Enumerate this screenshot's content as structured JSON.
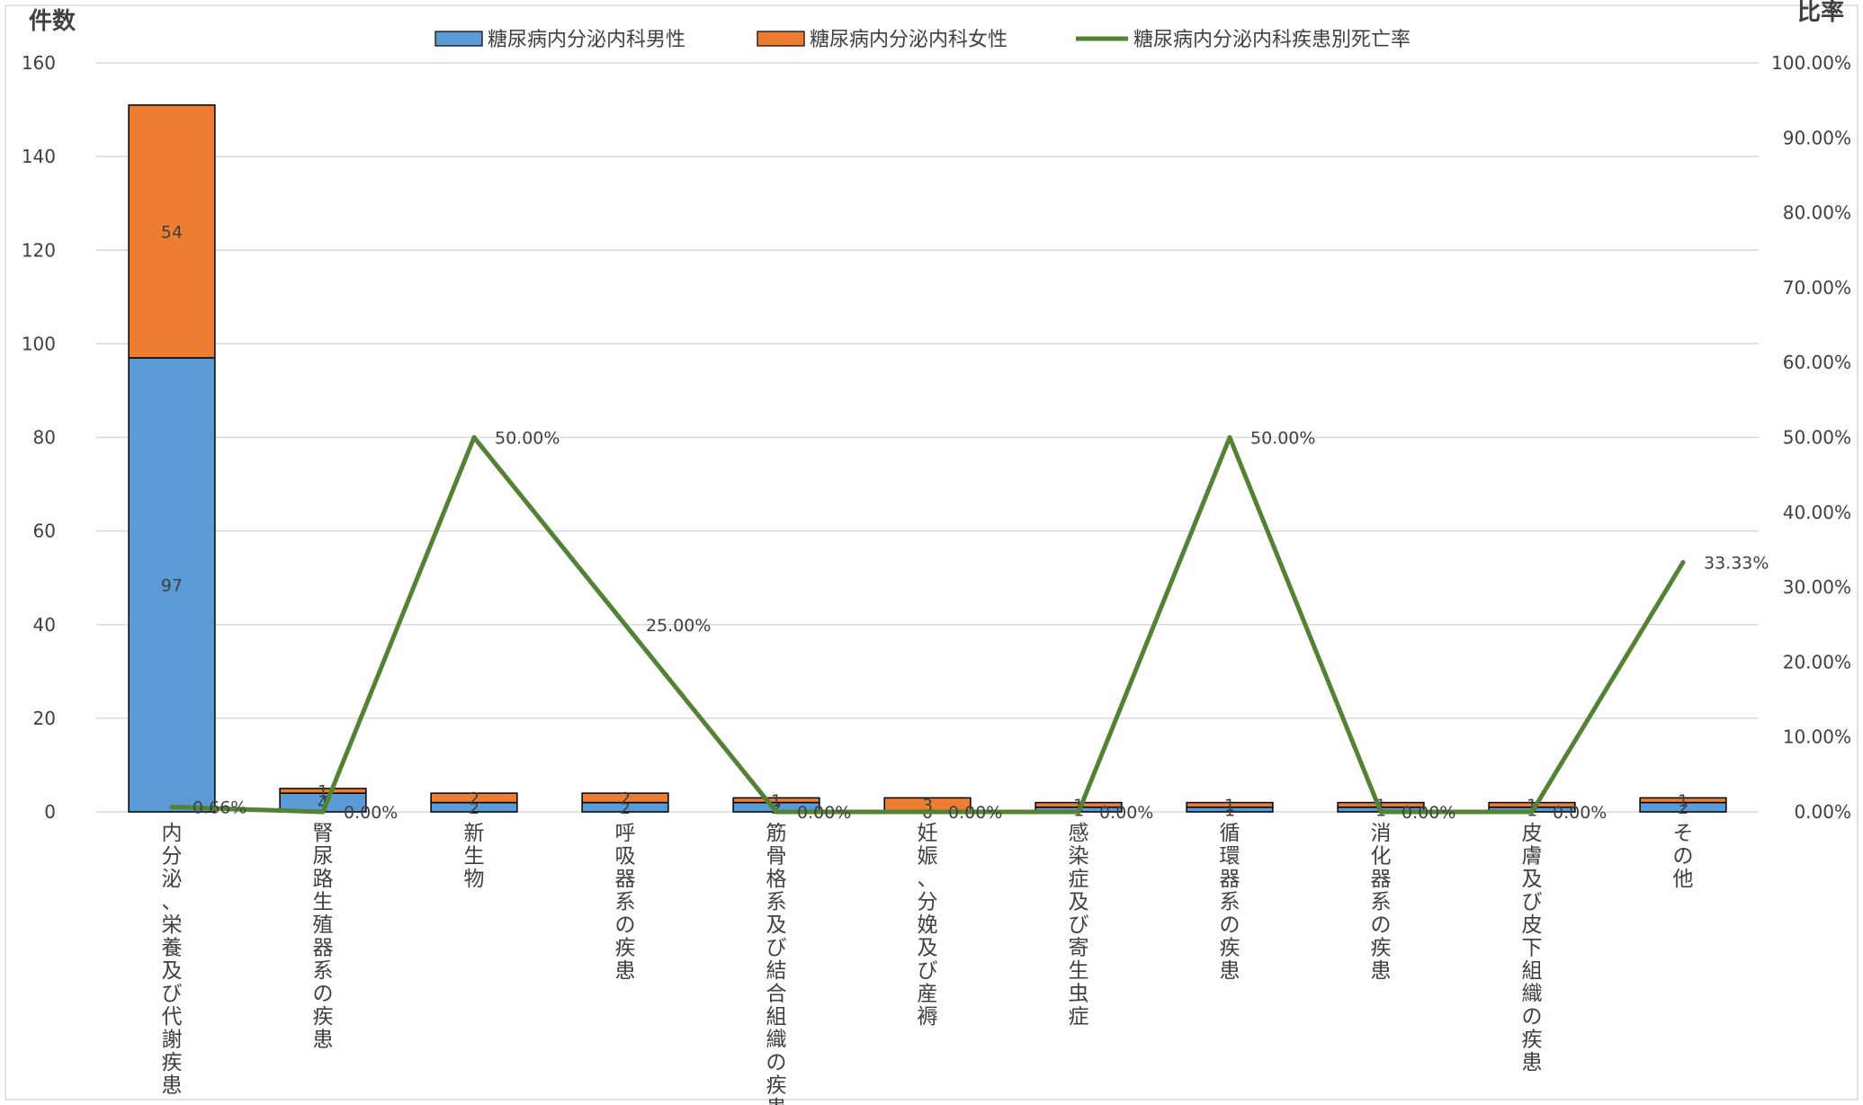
{
  "chart_data": {
    "type": "bar",
    "stacked": true,
    "y_left_label": "件数",
    "y_right_label": "比率",
    "ylim_left": [
      0,
      160
    ],
    "y_left_ticks": [
      "0",
      "20",
      "40",
      "60",
      "80",
      "100",
      "120",
      "140",
      "160"
    ],
    "ylim_right": [
      0,
      100
    ],
    "y_right_ticks": [
      "0.00%",
      "10.00%",
      "20.00%",
      "30.00%",
      "40.00%",
      "50.00%",
      "60.00%",
      "70.00%",
      "80.00%",
      "90.00%",
      "100.00%"
    ],
    "grid": true,
    "legend_position": "top",
    "categories": [
      "内分泌、栄養及び代謝疾患",
      "腎尿路生殖器系の疾患",
      "新生物",
      "呼吸器系の疾患",
      "筋骨格系及び結合組織の疾患",
      "妊娠、分娩及び産褥",
      "感染症及び寄生虫症",
      "循環器系の疾患",
      "消化器系の疾患",
      "皮膚及び皮下組織の疾患",
      "その他"
    ],
    "series": [
      {
        "name": "糖尿病内分泌内科男性",
        "kind": "bar",
        "axis": "left",
        "color": "#5B9BD5",
        "values": [
          97,
          4,
          2,
          2,
          2,
          0,
          1,
          1,
          1,
          1,
          2
        ]
      },
      {
        "name": "糖尿病内分泌内科女性",
        "kind": "bar",
        "axis": "left",
        "color": "#ED7D31",
        "values": [
          54,
          1,
          2,
          2,
          1,
          3,
          1,
          1,
          1,
          1,
          1
        ]
      },
      {
        "name": "糖尿病内分泌内科疾患別死亡率",
        "kind": "line",
        "axis": "right",
        "color": "#548235",
        "values": [
          0.66,
          0.0,
          50.0,
          25.0,
          0.0,
          0.0,
          0.0,
          50.0,
          0.0,
          0.0,
          33.33
        ],
        "labels": [
          "0.66%",
          "0.00%",
          "50.00%",
          "25.00%",
          "0.00%",
          "0.00%",
          "0.00%",
          "50.00%",
          "0.00%",
          "0.00%",
          "33.33%"
        ]
      }
    ]
  }
}
